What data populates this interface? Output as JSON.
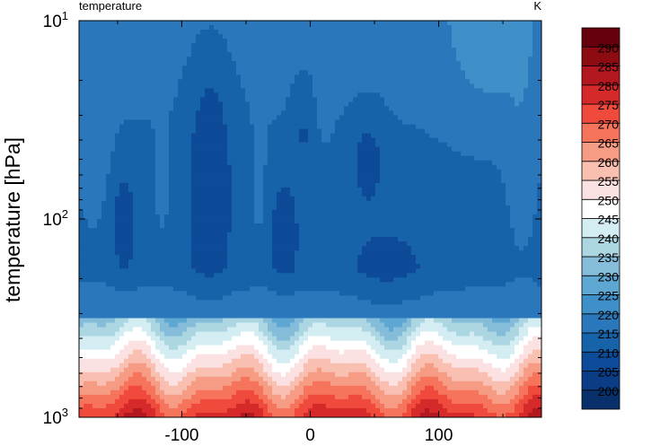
{
  "chart_data": {
    "type": "heatmap",
    "title_left": "temperature",
    "title_right": "K",
    "ylabel": "temperature  [hPa]",
    "xlabel": "",
    "x_range": [
      -180,
      180
    ],
    "x_ticks": [
      -100,
      0,
      100
    ],
    "x_tick_labels": [
      "-100",
      "0",
      "100"
    ],
    "y_scale": "log",
    "y_range": [
      10,
      1000
    ],
    "y_ticks": [
      {
        "value": 10,
        "base": "10",
        "exp": "1"
      },
      {
        "value": 100,
        "base": "10",
        "exp": "2"
      },
      {
        "value": 1000,
        "base": "10",
        "exp": "3"
      }
    ],
    "colorbar": {
      "levels": [
        200,
        205,
        210,
        215,
        220,
        225,
        230,
        235,
        240,
        245,
        250,
        255,
        260,
        265,
        270,
        275,
        280,
        285,
        290
      ],
      "labels": [
        "200",
        "205",
        "210",
        "215",
        "220",
        "225",
        "230",
        "235",
        "240",
        "245",
        "250",
        "255",
        "260",
        "265",
        "270",
        "275",
        "280",
        "285",
        "290"
      ],
      "colors": [
        "#08306b",
        "#0b3d86",
        "#0d4b99",
        "#1763aa",
        "#2a78bb",
        "#3f8fc8",
        "#5ea7d2",
        "#84bcd9",
        "#abd6e2",
        "#d3edf3",
        "#ffffff",
        "#fbe1e1",
        "#f9bfb0",
        "#f79c84",
        "#f6735c",
        "#ef4a3b",
        "#d6292a",
        "#b31820",
        "#8c0c12",
        "#67000d"
      ]
    },
    "grid": false,
    "legend": "colorbar-right"
  }
}
